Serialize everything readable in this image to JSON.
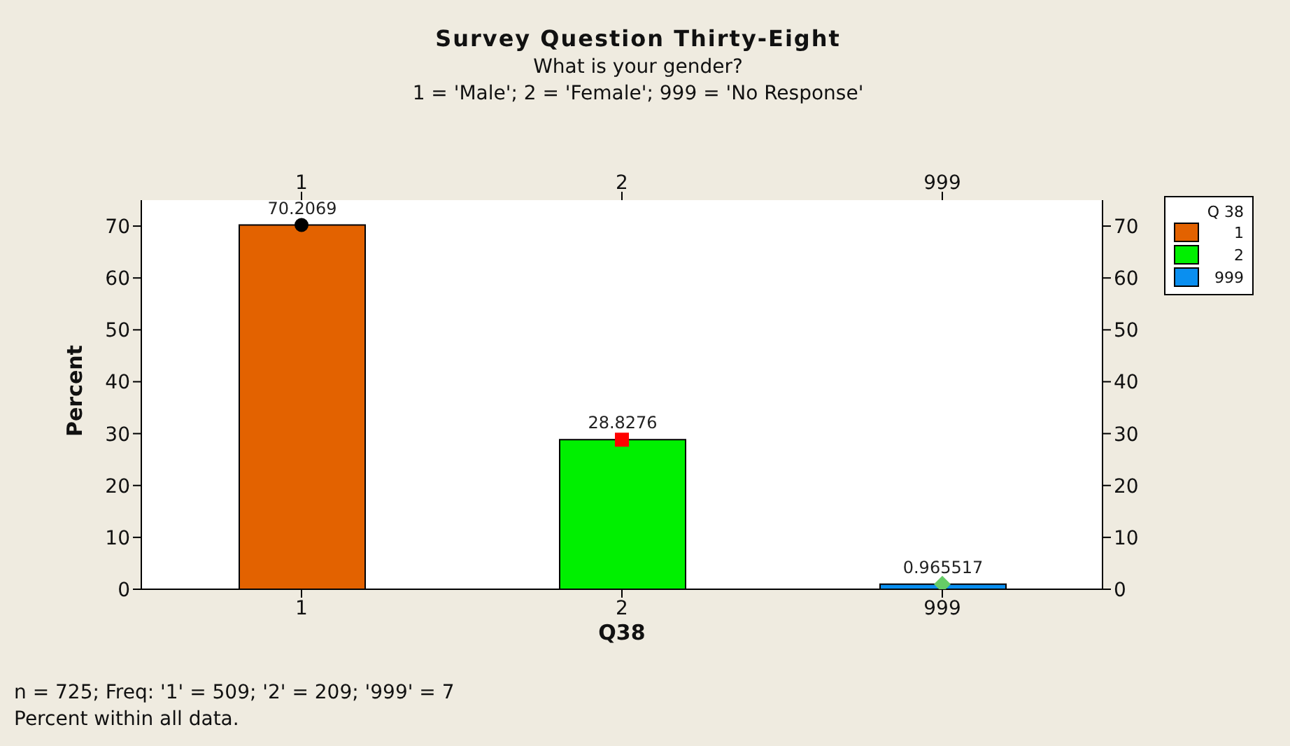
{
  "chart_data": {
    "type": "bar",
    "title": "Survey Question Thirty-Eight",
    "subtitle": "What is your gender?\n1 = 'Male'; 2 = 'Female'; 999 = 'No Response'",
    "xlabel": "Q38",
    "ylabel": "Percent",
    "legend_title": "Q 38",
    "legend": "top right",
    "stacked": true,
    "categories": [
      "1",
      "2",
      "999"
    ],
    "series": [
      {
        "name": "1",
        "values": [
          70.2069,
          null,
          null
        ],
        "value_labels": [
          "70.2069",
          null,
          null
        ],
        "color": "#e36200"
      },
      {
        "name": "2",
        "values": [
          null,
          28.8276,
          null
        ],
        "value_labels": [
          null,
          "28.8276",
          null
        ],
        "color": "#00f000"
      },
      {
        "name": "999",
        "values": [
          null,
          null,
          0.965517
        ],
        "value_labels": [
          null,
          null,
          "0.965517"
        ],
        "color": "#0a8ff0"
      },
      {
        "type": "scatter",
        "x": [
          "1"
        ],
        "values": [
          70.2069
        ],
        "color": "#000000",
        "marker": "circle"
      },
      {
        "type": "scatter",
        "x": [
          "2"
        ],
        "values": [
          28.8276
        ],
        "color": "#ff0000",
        "marker": "square"
      },
      {
        "type": "scatter",
        "x": [
          "999"
        ],
        "values": [
          0.965517
        ],
        "color": "#66cc66",
        "marker": "diamond"
      }
    ],
    "ylim": [
      0,
      75
    ],
    "yticks": [
      0,
      10,
      20,
      30,
      40,
      50,
      60,
      70
    ],
    "y2lim": [
      0,
      75
    ],
    "y2ticks": [
      0,
      10,
      20,
      30,
      40,
      50,
      60,
      70
    ],
    "annotations": [
      "n = 725; Freq: '1' = 509; '2' = 209; '999' = 7",
      "Percent within all data."
    ]
  }
}
